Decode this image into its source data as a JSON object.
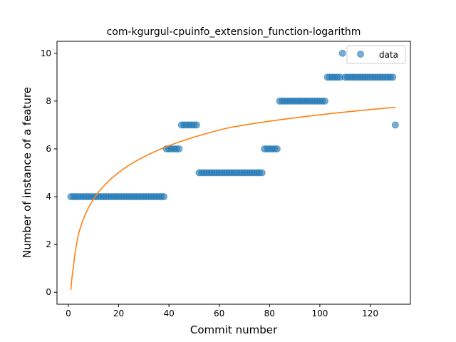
{
  "chart_data": {
    "type": "scatter",
    "title": "com-kgurgul-cpuinfo_extension_function-logarithm",
    "xlabel": "Commit number",
    "ylabel": "Number of instance of a feature",
    "xlim": [
      -4.5,
      136
    ],
    "ylim": [
      -0.5,
      10.5
    ],
    "xticks": [
      0,
      20,
      40,
      60,
      80,
      100,
      120
    ],
    "yticks": [
      0,
      2,
      4,
      6,
      8,
      10
    ],
    "grid": false,
    "legend": {
      "placement": "top-right",
      "entries": [
        "data"
      ]
    },
    "colors": {
      "data": "#1f77b4",
      "fit": "#ff7f0e"
    },
    "series": [
      {
        "name": "data",
        "kind": "scatter",
        "x": [
          1,
          2,
          3,
          4,
          5,
          6,
          7,
          8,
          9,
          10,
          11,
          12,
          13,
          14,
          15,
          16,
          17,
          18,
          19,
          20,
          21,
          22,
          23,
          24,
          25,
          26,
          27,
          28,
          29,
          30,
          31,
          32,
          33,
          34,
          35,
          36,
          37,
          38,
          39,
          40,
          41,
          42,
          43,
          44,
          45,
          46,
          47,
          48,
          49,
          50,
          51,
          52,
          53,
          54,
          55,
          56,
          57,
          58,
          59,
          60,
          61,
          62,
          63,
          64,
          65,
          66,
          67,
          68,
          69,
          70,
          71,
          72,
          73,
          74,
          75,
          76,
          77,
          78,
          79,
          80,
          81,
          82,
          83,
          84,
          85,
          86,
          87,
          88,
          89,
          90,
          91,
          92,
          93,
          94,
          95,
          96,
          97,
          98,
          99,
          100,
          101,
          102,
          103,
          104,
          105,
          106,
          107,
          108,
          109,
          110,
          111,
          112,
          113,
          114,
          115,
          116,
          117,
          118,
          119,
          120,
          121,
          122,
          123,
          124,
          125,
          126,
          127,
          128,
          129,
          130
        ],
        "y": [
          4,
          4,
          4,
          4,
          4,
          4,
          4,
          4,
          4,
          4,
          4,
          4,
          4,
          4,
          4,
          4,
          4,
          4,
          4,
          4,
          4,
          4,
          4,
          4,
          4,
          4,
          4,
          4,
          4,
          4,
          4,
          4,
          4,
          4,
          4,
          4,
          4,
          4,
          6,
          6,
          6,
          6,
          6,
          6,
          7,
          7,
          7,
          7,
          7,
          7,
          7,
          5,
          5,
          5,
          5,
          5,
          5,
          5,
          5,
          5,
          5,
          5,
          5,
          5,
          5,
          5,
          5,
          5,
          5,
          5,
          5,
          5,
          5,
          5,
          5,
          5,
          5,
          6,
          6,
          6,
          6,
          6,
          6,
          8,
          8,
          8,
          8,
          8,
          8,
          8,
          8,
          8,
          8,
          8,
          8,
          8,
          8,
          8,
          8,
          8,
          8,
          8,
          9,
          9,
          9,
          9,
          9,
          9,
          10,
          9,
          9,
          9,
          9,
          9,
          9,
          9,
          9,
          9,
          9,
          9,
          9,
          9,
          9,
          9,
          9,
          9,
          9,
          9,
          9,
          7
        ]
      },
      {
        "kind": "line",
        "fit": "logarithmic",
        "x": [
          1,
          2,
          4,
          8,
          16,
          32,
          64,
          130
        ],
        "y": [
          0.1,
          1.05,
          2.41,
          3.53,
          4.65,
          5.77,
          6.89,
          7.74
        ]
      }
    ]
  }
}
